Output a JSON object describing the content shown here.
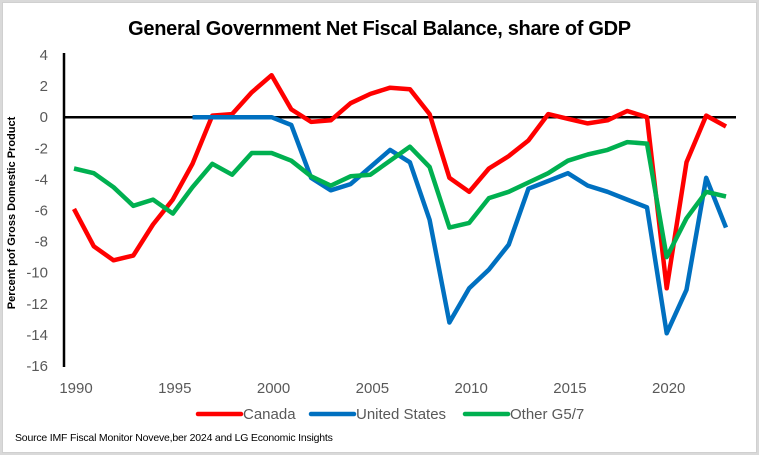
{
  "chart_data": {
    "type": "line",
    "title": "General Government Net Fiscal Balance, share of GDP",
    "xlabel": "",
    "ylabel": "Percent pof Gross Domestic Product",
    "ylim": [
      -16,
      4
    ],
    "xlim": [
      1990,
      2023
    ],
    "yticks": [
      4,
      2,
      0,
      -2,
      -4,
      -6,
      -8,
      -10,
      -12,
      -14,
      -16
    ],
    "xticks": [
      1990,
      1995,
      2000,
      2005,
      2010,
      2015,
      2020
    ],
    "grid": false,
    "legend_position": "bottom",
    "x": [
      1990,
      1991,
      1992,
      1993,
      1994,
      1995,
      1996,
      1997,
      1998,
      1999,
      2000,
      2001,
      2002,
      2003,
      2004,
      2005,
      2006,
      2007,
      2008,
      2009,
      2010,
      2011,
      2012,
      2013,
      2014,
      2015,
      2016,
      2017,
      2018,
      2019,
      2020,
      2021,
      2022,
      2023
    ],
    "series": [
      {
        "name": "Canada",
        "color": "#ff0000",
        "values": [
          -5.9,
          -8.3,
          -9.2,
          -8.9,
          -6.9,
          -5.3,
          -3.0,
          0.1,
          0.2,
          1.6,
          2.7,
          0.5,
          -0.3,
          -0.2,
          0.9,
          1.5,
          1.9,
          1.8,
          0.2,
          -3.9,
          -4.8,
          -3.3,
          -2.5,
          -1.5,
          0.2,
          -0.1,
          -0.4,
          -0.2,
          0.4,
          0.0,
          -11.0,
          -2.9,
          0.1,
          -0.6
        ]
      },
      {
        "name": "United States",
        "color": "#0070c0",
        "values": [
          null,
          null,
          null,
          null,
          null,
          null,
          0.0,
          0.0,
          0.0,
          0.0,
          0.0,
          -0.5,
          -3.9,
          -4.7,
          -4.3,
          -3.2,
          -2.1,
          -2.9,
          -6.6,
          -13.2,
          -11.0,
          -9.8,
          -8.2,
          -4.6,
          -4.1,
          -3.6,
          -4.4,
          -4.8,
          -5.3,
          -5.8,
          -13.9,
          -11.1,
          -3.9,
          -7.1
        ]
      },
      {
        "name": "Other G5/7",
        "color": "#00b050",
        "values": [
          -3.3,
          -3.6,
          -4.5,
          -5.7,
          -5.3,
          -6.2,
          -4.5,
          -3.0,
          -3.7,
          -2.3,
          -2.3,
          -2.8,
          -3.8,
          -4.4,
          -3.8,
          -3.7,
          -2.8,
          -1.9,
          -3.2,
          -7.1,
          -6.8,
          -5.2,
          -4.8,
          -4.2,
          -3.6,
          -2.8,
          -2.4,
          -2.1,
          -1.6,
          -1.7,
          -9.0,
          -6.5,
          -4.8,
          -5.1
        ]
      }
    ]
  },
  "source_note": "Source IMF Fiscal Monitor Noveve,ber 2024 and LG Economic Insights"
}
